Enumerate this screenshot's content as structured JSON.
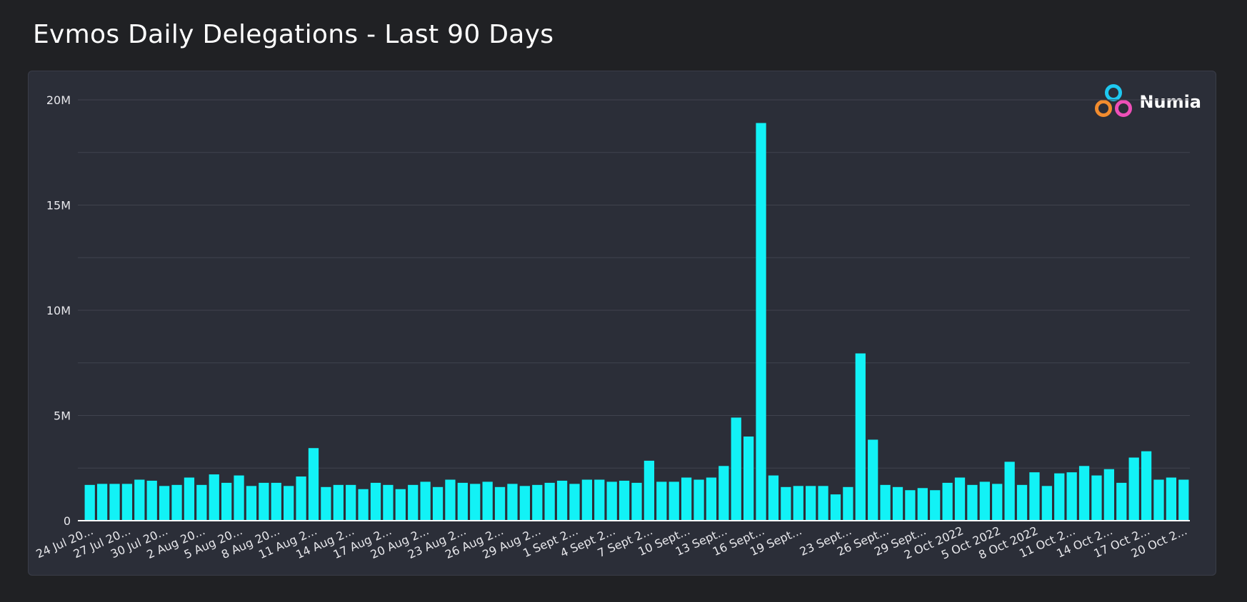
{
  "page": {
    "title": "Evmos Daily Delegations - Last 90 Days"
  },
  "brand": {
    "name": "Numia"
  },
  "colors": {
    "bar": "#12f2f6",
    "grid": "#40434e",
    "axis": "#ffffff",
    "tick_text": "#e8e8ec"
  },
  "chart_data": {
    "type": "bar",
    "title": "Evmos Daily Delegations - Last 90 Days",
    "xlabel": "",
    "ylabel": "",
    "ylim": [
      0,
      20000000
    ],
    "y_ticks": [
      0,
      5000000,
      10000000,
      15000000,
      20000000
    ],
    "y_tick_labels": [
      "0",
      "5M",
      "10M",
      "15M",
      "20M"
    ],
    "x_tick_labels": [
      "24 Jul 20...",
      "27 Jul 20...",
      "30 Jul 20...",
      "2 Aug 20...",
      "5 Aug 20...",
      "8 Aug 20...",
      "11 Aug 2...",
      "14 Aug 2...",
      "17 Aug 2...",
      "20 Aug 2...",
      "23 Aug 2...",
      "26 Aug 2...",
      "29 Aug 2...",
      "1 Sept 2...",
      "4 Sept 2...",
      "7 Sept 2...",
      "10 Sept...",
      "13 Sept...",
      "16 Sept...",
      "19 Sept...",
      "23 Sept...",
      "26 Sept...",
      "29 Sept...",
      "2 Oct 2022",
      "5 Oct 2022",
      "8 Oct 2022",
      "11 Oct 2...",
      "14 Oct 2...",
      "17 Oct 2...",
      "20 Oct 2..."
    ],
    "series": [
      {
        "name": "Delegations",
        "values": [
          1700000,
          1750000,
          1750000,
          1750000,
          1950000,
          1900000,
          1650000,
          1700000,
          2050000,
          1700000,
          2200000,
          1800000,
          2150000,
          1650000,
          1800000,
          1800000,
          1650000,
          2100000,
          3450000,
          1600000,
          1700000,
          1700000,
          1500000,
          1800000,
          1700000,
          1500000,
          1700000,
          1850000,
          1600000,
          1950000,
          1800000,
          1750000,
          1850000,
          1600000,
          1750000,
          1650000,
          1700000,
          1800000,
          1900000,
          1750000,
          1950000,
          1950000,
          1850000,
          1900000,
          1800000,
          2850000,
          1850000,
          1850000,
          2050000,
          1950000,
          2050000,
          2600000,
          4900000,
          4000000,
          18900000,
          2150000,
          1600000,
          1650000,
          1650000,
          1650000,
          1250000,
          1600000,
          7950000,
          3850000,
          1700000,
          1600000,
          1450000,
          1550000,
          1450000,
          1800000,
          2050000,
          1700000,
          1850000,
          1750000,
          2800000,
          1700000,
          2300000,
          1650000,
          2250000,
          2300000,
          2600000,
          2150000,
          2450000,
          1800000,
          3000000,
          3300000,
          1950000,
          2050000,
          1950000
        ]
      }
    ]
  }
}
